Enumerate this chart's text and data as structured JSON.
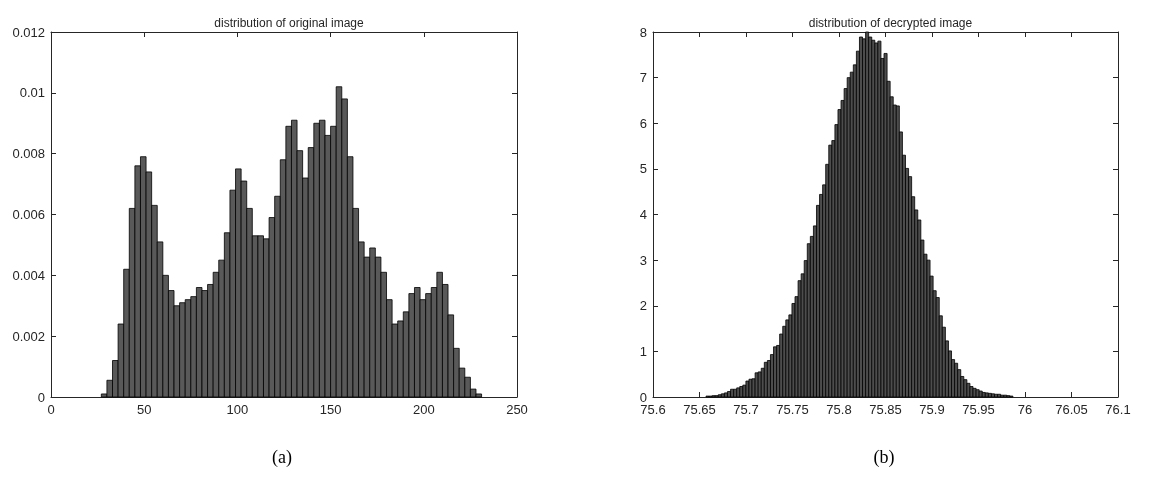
{
  "chart_data": [
    {
      "type": "histogram",
      "title": "distribution of original image",
      "color": "#595959",
      "bins": [
        27,
        30,
        33,
        36,
        39,
        42,
        45,
        48,
        51,
        54,
        57,
        60,
        63,
        66,
        69,
        72,
        75,
        78,
        81,
        84,
        87,
        90,
        93,
        96,
        99,
        102,
        105,
        108,
        111,
        114,
        117,
        120,
        123,
        126,
        129,
        132,
        135,
        138,
        141,
        144,
        147,
        150,
        153,
        156,
        159,
        162,
        165,
        168,
        171,
        174,
        177,
        180,
        183,
        186,
        189,
        192,
        195,
        198,
        201,
        204,
        207,
        210,
        213,
        216,
        219,
        222,
        225,
        228,
        231
      ],
      "values": [
        0.0001,
        0.00055,
        0.0012,
        0.0024,
        0.0042,
        0.0062,
        0.0076,
        0.0079,
        0.0074,
        0.0063,
        0.0051,
        0.004,
        0.0035,
        0.003,
        0.0031,
        0.0032,
        0.0033,
        0.0036,
        0.0035,
        0.0037,
        0.0041,
        0.0045,
        0.0054,
        0.0068,
        0.0075,
        0.0071,
        0.0062,
        0.0053,
        0.0053,
        0.0052,
        0.0059,
        0.0066,
        0.0078,
        0.0089,
        0.0091,
        0.0081,
        0.0072,
        0.0082,
        0.009,
        0.0091,
        0.0086,
        0.0089,
        0.0102,
        0.0098,
        0.0079,
        0.0062,
        0.0051,
        0.0046,
        0.0049,
        0.0046,
        0.0041,
        0.0032,
        0.0024,
        0.0025,
        0.0028,
        0.0034,
        0.0036,
        0.0032,
        0.0034,
        0.0036,
        0.0041,
        0.0037,
        0.0027,
        0.0016,
        0.00095,
        0.00065,
        0.00026,
        0.0001
      ],
      "xlim": [
        0,
        250
      ],
      "xticks": [
        0,
        50,
        100,
        150,
        200,
        250
      ],
      "ylim": [
        0,
        0.012
      ],
      "yticks": [
        0,
        0.002,
        0.004,
        0.006,
        0.008,
        0.01,
        0.012
      ],
      "annotations": [
        "(a)"
      ]
    },
    {
      "type": "histogram",
      "title": "distribution of decrypted image",
      "color": "#4d4d4d",
      "bins": [
        75.657,
        75.6603,
        75.6636,
        75.6669,
        75.6702,
        75.6735,
        75.6768,
        75.6801,
        75.6834,
        75.6867,
        75.69,
        75.6933,
        75.6966,
        75.6999,
        75.7032,
        75.7065,
        75.7098,
        75.7131,
        75.7164,
        75.7197,
        75.723,
        75.7263,
        75.7296,
        75.7329,
        75.7362,
        75.7395,
        75.7428,
        75.7461,
        75.7494,
        75.7527,
        75.756,
        75.7593,
        75.7626,
        75.7659,
        75.7692,
        75.7725,
        75.7758,
        75.7791,
        75.7824,
        75.7857,
        75.789,
        75.7923,
        75.7956,
        75.7989,
        75.8022,
        75.8055,
        75.8088,
        75.8121,
        75.8154,
        75.8187,
        75.822,
        75.8253,
        75.8286,
        75.8319,
        75.8352,
        75.8385,
        75.8418,
        75.8451,
        75.8484,
        75.8517,
        75.855,
        75.8583,
        75.8616,
        75.8649,
        75.8682,
        75.8715,
        75.8748,
        75.8781,
        75.8814,
        75.8847,
        75.888,
        75.8913,
        75.8946,
        75.8979,
        75.9012,
        75.9045,
        75.9078,
        75.9111,
        75.9144,
        75.9177,
        75.921,
        75.9243,
        75.9276,
        75.9309,
        75.9342,
        75.9375,
        75.9408,
        75.9441,
        75.9474,
        75.9507,
        75.954,
        75.9573,
        75.9606,
        75.9639,
        75.9672,
        75.9705,
        75.9738,
        75.9771,
        75.9804,
        75.9837,
        75.987
      ],
      "values": [
        0.02,
        0.02,
        0.03,
        0.03,
        0.05,
        0.07,
        0.09,
        0.12,
        0.17,
        0.17,
        0.2,
        0.23,
        0.26,
        0.35,
        0.39,
        0.4,
        0.53,
        0.55,
        0.63,
        0.76,
        0.8,
        0.93,
        1.1,
        1.13,
        1.38,
        1.55,
        1.69,
        1.8,
        2.05,
        2.2,
        2.55,
        2.7,
        2.99,
        3.36,
        3.52,
        3.75,
        4.2,
        4.44,
        4.65,
        5.1,
        5.52,
        5.62,
        5.97,
        6.3,
        6.5,
        6.76,
        7.0,
        7.12,
        7.28,
        7.58,
        7.89,
        7.85,
        8.0,
        7.89,
        7.82,
        7.76,
        7.8,
        7.42,
        7.53,
        6.92,
        6.58,
        6.4,
        6.38,
        5.81,
        5.3,
        5.01,
        4.83,
        4.39,
        4.1,
        3.88,
        3.44,
        3.13,
        3.0,
        2.65,
        2.33,
        2.18,
        1.78,
        1.53,
        1.23,
        1.01,
        0.82,
        0.74,
        0.6,
        0.45,
        0.38,
        0.3,
        0.23,
        0.19,
        0.16,
        0.13,
        0.1,
        0.09,
        0.08,
        0.07,
        0.06,
        0.06,
        0.04,
        0.04,
        0.03,
        0.02
      ],
      "xlim": [
        75.6,
        76.1
      ],
      "xticks": [
        75.6,
        75.65,
        75.7,
        75.75,
        75.8,
        75.85,
        75.9,
        75.95,
        76,
        76.05,
        76.1
      ],
      "ylim": [
        0,
        8
      ],
      "yticks": [
        0,
        1,
        2,
        3,
        4,
        5,
        6,
        7,
        8
      ],
      "annotations": [
        "(b)"
      ]
    }
  ]
}
